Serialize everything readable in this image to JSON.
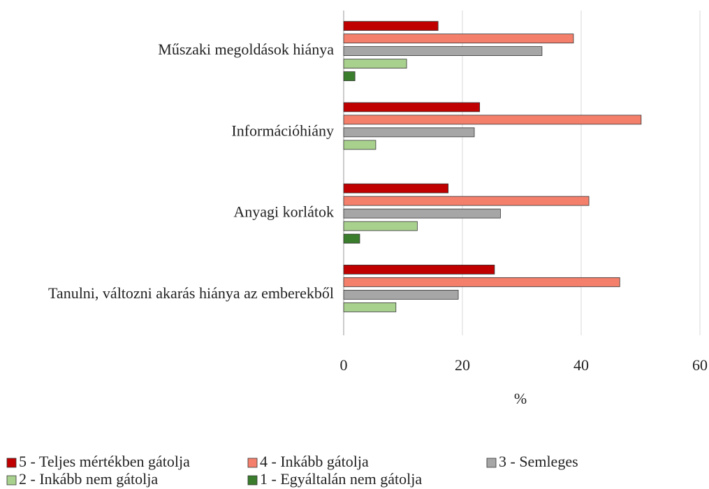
{
  "chart_data": {
    "type": "barh",
    "categories": [
      "Műszaki megoldások hiánya",
      "Információhiány",
      "Anyagi korlátok",
      "Tanulni, változni akarás hiánya az emberekből"
    ],
    "series": [
      {
        "name": "5 - Teljes mértékben gátolja",
        "color": "#c00000",
        "values": [
          15.9,
          22.9,
          17.6,
          25.4
        ]
      },
      {
        "name": "4 - Inkább gátolja",
        "color": "#f4806c",
        "values": [
          38.7,
          50.1,
          41.3,
          46.5
        ]
      },
      {
        "name": "3 - Semleges",
        "color": "#a6a6a6",
        "values": [
          33.4,
          22.0,
          26.4,
          19.3
        ]
      },
      {
        "name": "2 - Inkább nem gátolja",
        "color": "#a9d18e",
        "values": [
          10.6,
          5.4,
          12.4,
          8.8
        ]
      },
      {
        "name": "1 - Egyáltalán nem gátolja",
        "color": "#3a7d2c",
        "values": [
          1.9,
          0,
          2.7,
          0
        ]
      }
    ],
    "xlabel": "%",
    "xlim": [
      0,
      60
    ],
    "xticks": [
      0,
      20,
      40,
      60
    ],
    "grid": true,
    "legend": "bottom"
  }
}
